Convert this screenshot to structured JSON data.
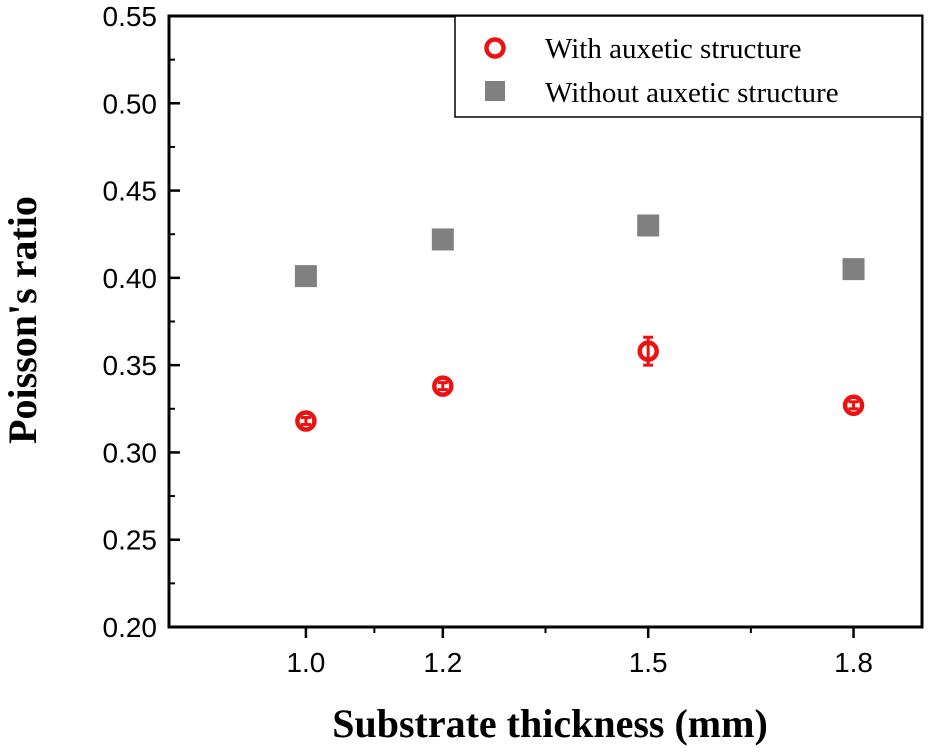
{
  "chart_data": {
    "type": "scatter",
    "title": "",
    "xlabel": "Substrate thickness (mm)",
    "ylabel": "Poisson's ratio",
    "xlim": [
      0.8,
      1.9
    ],
    "ylim": [
      0.2,
      0.55
    ],
    "x_ticks": [
      {
        "value": 1.0,
        "label": "1.0"
      },
      {
        "value": 1.2,
        "label": "1.2"
      },
      {
        "value": 1.5,
        "label": "1.5"
      },
      {
        "value": 1.8,
        "label": "1.8"
      }
    ],
    "x_minor_ticks": [
      1.1,
      1.35,
      1.65
    ],
    "y_ticks": [
      {
        "value": 0.2,
        "label": "0.20"
      },
      {
        "value": 0.25,
        "label": "0.25"
      },
      {
        "value": 0.3,
        "label": "0.30"
      },
      {
        "value": 0.35,
        "label": "0.35"
      },
      {
        "value": 0.4,
        "label": "0.40"
      },
      {
        "value": 0.45,
        "label": "0.45"
      },
      {
        "value": 0.5,
        "label": "0.50"
      },
      {
        "value": 0.55,
        "label": "0.55"
      }
    ],
    "y_minor_ticks": [
      0.225,
      0.275,
      0.325,
      0.375,
      0.425,
      0.475,
      0.525
    ],
    "grid": false,
    "legend_position": "top-right",
    "series": [
      {
        "name": "With auxetic structure",
        "marker": "circle-open",
        "color": "#ee1111",
        "x": [
          1.0,
          1.2,
          1.5,
          1.8
        ],
        "y": [
          0.318,
          0.338,
          0.358,
          0.327
        ],
        "error": [
          0.002,
          0.002,
          0.008,
          0.002
        ]
      },
      {
        "name": "Without auxetic structure",
        "marker": "square",
        "color": "#808080",
        "x": [
          1.0,
          1.2,
          1.5,
          1.8
        ],
        "y": [
          0.401,
          0.422,
          0.43,
          0.405
        ],
        "error": [
          0,
          0,
          0,
          0
        ]
      }
    ]
  }
}
